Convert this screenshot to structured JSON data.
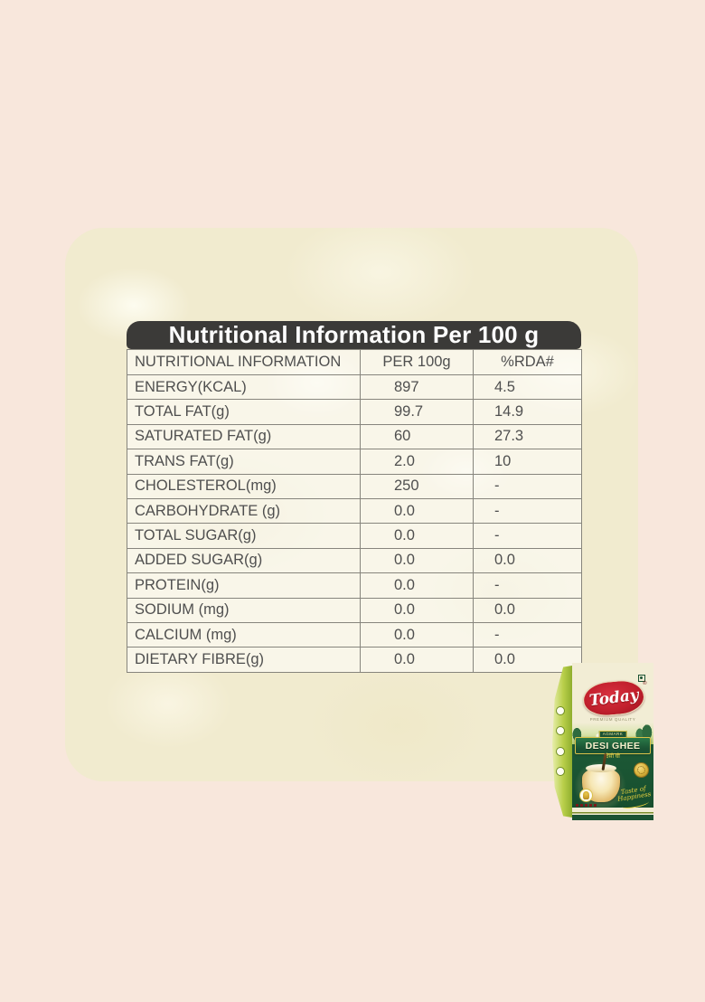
{
  "colors": {
    "page_background": "#f8e7dc",
    "panel_background": "#f1ebcf",
    "title_bar_background": "#3b3a38",
    "title_bar_text": "#ffffff",
    "table_text": "#4f4f4f",
    "table_border": "#87857d",
    "pack_green_dark": "#1b5233",
    "pack_green_light": "#b9cf4a",
    "brand_red": "#c2202d",
    "pack_cream": "#f2edd5",
    "accent_gold": "#d9c24a"
  },
  "nutrition": {
    "title": "Nutritional Information Per 100 g",
    "columns": [
      "NUTRITIONAL INFORMATION",
      "PER 100g",
      "%RDA#"
    ],
    "rows": [
      {
        "label": "ENERGY(KCAL)",
        "per_100g": "897",
        "rda": "4.5"
      },
      {
        "label": "TOTAL FAT(g)",
        "per_100g": "99.7",
        "rda": "14.9"
      },
      {
        "label": "SATURATED FAT(g)",
        "per_100g": "60",
        "rda": "27.3"
      },
      {
        "label": "TRANS FAT(g)",
        "per_100g": "2.0",
        "rda": "10"
      },
      {
        "label": "CHOLESTEROL(mg)",
        "per_100g": "250",
        "rda": "-"
      },
      {
        "label": "CARBOHYDRATE (g)",
        "per_100g": "0.0",
        "rda": "-"
      },
      {
        "label": "TOTAL SUGAR(g)",
        "per_100g": "0.0",
        "rda": "-"
      },
      {
        "label": "ADDED SUGAR(g)",
        "per_100g": "0.0",
        "rda": "0.0"
      },
      {
        "label": "PROTEIN(g)",
        "per_100g": "0.0",
        "rda": "-"
      },
      {
        "label": "SODIUM (mg)",
        "per_100g": "0.0",
        "rda": "0.0"
      },
      {
        "label": "CALCIUM (mg)",
        "per_100g": "0.0",
        "rda": "-"
      },
      {
        "label": "DIETARY FIBRE(g)",
        "per_100g": "0.0",
        "rda": "0.0"
      }
    ]
  },
  "product_pack": {
    "brand": "Today",
    "registered_mark": "®",
    "tagline": "PREMIUM QUALITY",
    "certification_label": "AGMARK",
    "product_name": "DESI GHEE",
    "product_name_hindi": "देसी घी",
    "slogan_line1": "Taste of",
    "slogan_line2": "Happiness"
  }
}
